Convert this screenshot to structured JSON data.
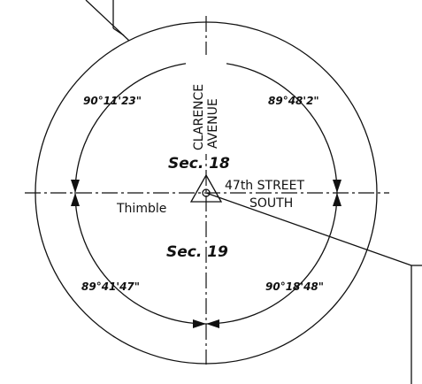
{
  "street_labels": {
    "vertical_1": "CLARENCE",
    "vertical_2": "AVENUE",
    "horizontal_1": "47th STREET",
    "horizontal_2": "SOUTH"
  },
  "sections": {
    "upper": "Sec. 18",
    "lower": "Sec. 19"
  },
  "monument": "Thimble",
  "angles": {
    "top_left": "90°11'23\"",
    "top_right": "89°48'2\"",
    "bottom_left": "89°41'47\"",
    "bottom_right": "90°18'48\""
  }
}
